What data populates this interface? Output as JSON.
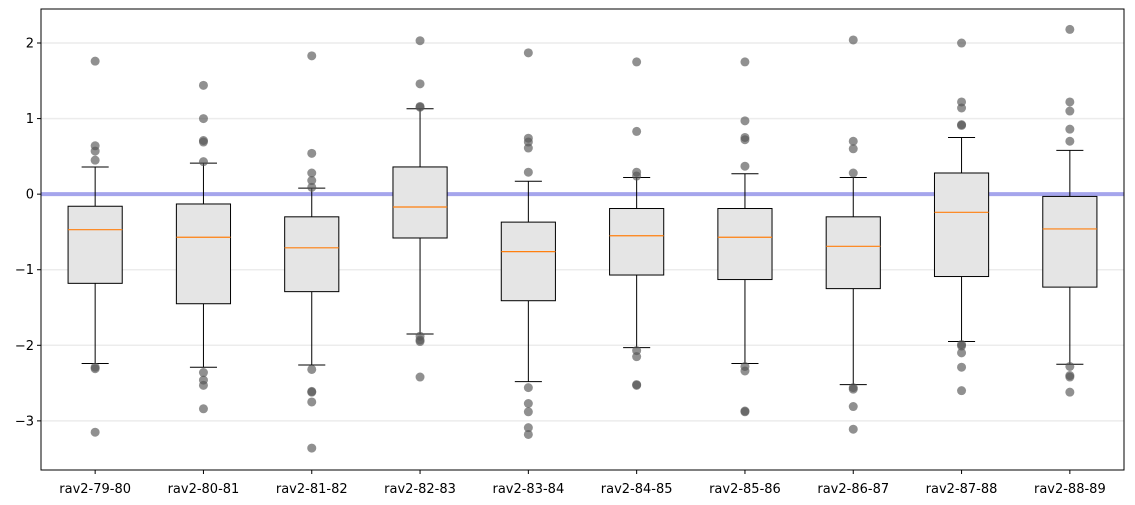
{
  "chart_data": {
    "type": "box",
    "title": "",
    "xlabel": "",
    "ylabel": "",
    "ylim": [
      -3.65,
      2.45
    ],
    "yticks": [
      2,
      1,
      0,
      -1,
      -2,
      -3
    ],
    "ytick_labels": [
      "2",
      "1",
      "0",
      "−1",
      "−2",
      "−3"
    ],
    "grid": "horizontal",
    "reference_line": {
      "y": 0,
      "color": "#a5a5ec"
    },
    "colors": {
      "box_fill": "#e5e5e5",
      "box_edge": "#000000",
      "median": "#ff7f0e",
      "outlier": "#555555",
      "grid": "#ececec"
    },
    "categories": [
      "rav2-79-80",
      "rav2-80-81",
      "rav2-81-82",
      "rav2-82-83",
      "rav2-83-84",
      "rav2-84-85",
      "rav2-85-86",
      "rav2-86-87",
      "rav2-87-88",
      "rav2-88-89"
    ],
    "boxes": [
      {
        "whislo": -2.24,
        "q1": -1.18,
        "med": -0.47,
        "q3": -0.16,
        "whishi": 0.36,
        "fliers": [
          1.76,
          0.64,
          0.57,
          0.45,
          -2.29,
          -2.31,
          -3.15
        ]
      },
      {
        "whislo": -2.29,
        "q1": -1.45,
        "med": -0.57,
        "q3": -0.13,
        "whishi": 0.41,
        "fliers": [
          1.44,
          1.0,
          0.71,
          0.69,
          0.43,
          -2.36,
          -2.46,
          -2.53,
          -2.84
        ]
      },
      {
        "whislo": -2.26,
        "q1": -1.29,
        "med": -0.71,
        "q3": -0.3,
        "whishi": 0.08,
        "fliers": [
          1.83,
          0.54,
          0.28,
          0.18,
          0.09,
          -2.32,
          -2.61,
          -2.62,
          -2.75,
          -3.36
        ]
      },
      {
        "whislo": -1.85,
        "q1": -0.58,
        "med": -0.17,
        "q3": 0.36,
        "whishi": 1.13,
        "fliers": [
          2.03,
          1.46,
          1.16,
          1.15,
          -1.88,
          -1.93,
          -1.95,
          -2.42
        ]
      },
      {
        "whislo": -2.48,
        "q1": -1.41,
        "med": -0.76,
        "q3": -0.37,
        "whishi": 0.17,
        "fliers": [
          1.87,
          0.74,
          0.69,
          0.61,
          0.29,
          -2.56,
          -2.77,
          -2.88,
          -3.09,
          -3.18
        ]
      },
      {
        "whislo": -2.03,
        "q1": -1.07,
        "med": -0.55,
        "q3": -0.19,
        "whishi": 0.22,
        "fliers": [
          1.75,
          0.83,
          0.29,
          0.24,
          -2.07,
          -2.15,
          -2.52,
          -2.53
        ]
      },
      {
        "whislo": -2.24,
        "q1": -1.13,
        "med": -0.57,
        "q3": -0.19,
        "whishi": 0.27,
        "fliers": [
          1.75,
          0.97,
          0.75,
          0.72,
          0.37,
          -2.28,
          -2.34,
          -2.87,
          -2.88
        ]
      },
      {
        "whislo": -2.52,
        "q1": -1.25,
        "med": -0.69,
        "q3": -0.3,
        "whishi": 0.22,
        "fliers": [
          2.04,
          0.7,
          0.6,
          0.28,
          -2.56,
          -2.58,
          -2.81,
          -3.11
        ]
      },
      {
        "whislo": -1.95,
        "q1": -1.09,
        "med": -0.24,
        "q3": 0.28,
        "whishi": 0.75,
        "fliers": [
          2.0,
          1.22,
          1.14,
          0.92,
          0.91,
          -1.99,
          -2.01,
          -2.1,
          -2.29,
          -2.6
        ]
      },
      {
        "whislo": -2.25,
        "q1": -1.23,
        "med": -0.46,
        "q3": -0.03,
        "whishi": 0.58,
        "fliers": [
          2.18,
          1.22,
          1.1,
          0.86,
          0.7,
          -2.28,
          -2.4,
          -2.42,
          -2.62
        ]
      }
    ]
  }
}
